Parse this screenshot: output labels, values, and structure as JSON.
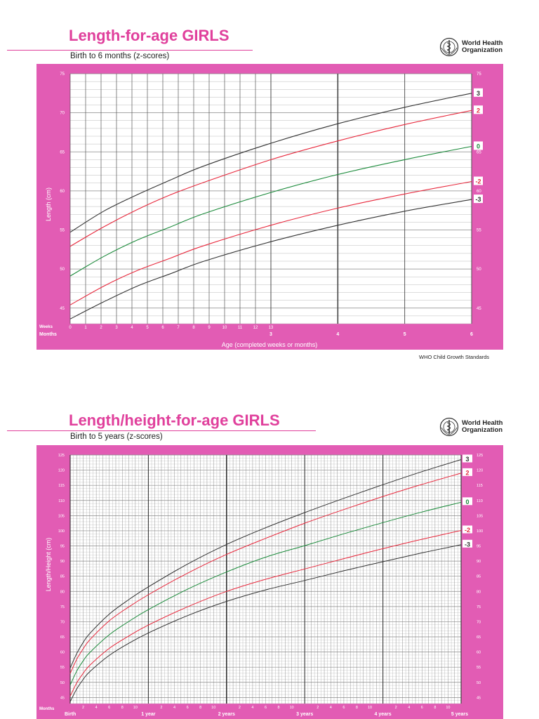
{
  "chart1": {
    "title": "Length-for-age GIRLS",
    "subtitle": "Birth to 6 months (z-scores)",
    "org_line1": "World Health",
    "org_line2": "Organization",
    "ylabel": "Length (cm)",
    "xlabel": "Age (completed weeks or months)",
    "weeks_label": "Weeks",
    "months_label": "Months",
    "week_ticks": [
      "0",
      "1",
      "2",
      "3",
      "4",
      "5",
      "6",
      "7",
      "8",
      "9",
      "10",
      "11",
      "12",
      "13"
    ],
    "month_ticks": [
      "3",
      "4",
      "5",
      "6"
    ],
    "footer": "WHO Child Growth Standards"
  },
  "chart2": {
    "title": "Length/height-for-age GIRLS",
    "subtitle": "Birth to 5 years (z-scores)",
    "org_line1": "World Health",
    "org_line2": "Organization",
    "ylabel": "Length/Height (cm)",
    "months_label": "Months",
    "month_ticks": [
      "2",
      "4",
      "6",
      "8",
      "10"
    ],
    "year_labels": [
      "Birth",
      "1 year",
      "2 years",
      "3 years",
      "4 years",
      "5 years"
    ]
  },
  "chart_data": [
    {
      "type": "line",
      "title": "Length-for-age GIRLS",
      "subtitle": "Birth to 6 months (z-scores)",
      "xlabel": "Age (completed weeks or months)",
      "ylabel": "Length (cm)",
      "x_unit": "months",
      "xlim": [
        0,
        6
      ],
      "ylim": [
        43,
        75
      ],
      "yticks": [
        45,
        50,
        55,
        60,
        65,
        70,
        75
      ],
      "grid": true,
      "x": [
        0,
        0.5,
        1,
        1.5,
        2,
        3,
        4,
        5,
        6
      ],
      "series": [
        {
          "name": "3",
          "color": "#333333",
          "values": [
            54.7,
            57.4,
            59.5,
            61.4,
            63.2,
            66.1,
            68.6,
            70.7,
            72.5
          ]
        },
        {
          "name": "2",
          "color": "#e8283c",
          "values": [
            52.9,
            55.4,
            57.6,
            59.5,
            61.1,
            64.0,
            66.4,
            68.5,
            70.3
          ]
        },
        {
          "name": "0",
          "color": "#1a8a3a",
          "values": [
            49.1,
            51.6,
            53.7,
            55.4,
            57.1,
            59.8,
            62.1,
            64.0,
            65.7
          ]
        },
        {
          "name": "-2",
          "color": "#e8283c",
          "values": [
            45.4,
            47.8,
            49.8,
            51.4,
            53.0,
            55.6,
            57.8,
            59.6,
            61.2
          ]
        },
        {
          "name": "-3",
          "color": "#333333",
          "values": [
            43.6,
            45.8,
            47.8,
            49.4,
            51.0,
            53.5,
            55.6,
            57.4,
            58.9
          ]
        }
      ]
    },
    {
      "type": "line",
      "title": "Length/height-for-age GIRLS",
      "subtitle": "Birth to 5 years (z-scores)",
      "ylabel": "Length/Height (cm)",
      "x_unit": "months",
      "xlim": [
        0,
        60
      ],
      "ylim": [
        43,
        125
      ],
      "yticks": [
        45,
        50,
        55,
        60,
        65,
        70,
        75,
        80,
        85,
        90,
        95,
        100,
        105,
        110,
        115,
        120,
        125
      ],
      "grid": true,
      "x": [
        0,
        1,
        2,
        3,
        6,
        9,
        12,
        18,
        24,
        30,
        36,
        42,
        48,
        54,
        60
      ],
      "series": [
        {
          "name": "3",
          "color": "#333333",
          "values": [
            54.7,
            59.5,
            63.2,
            66.1,
            72.5,
            77.3,
            81.5,
            89.0,
            95.5,
            101.0,
            106.0,
            110.7,
            115.2,
            119.5,
            123.5
          ]
        },
        {
          "name": "2",
          "color": "#e8283c",
          "values": [
            52.9,
            57.6,
            61.1,
            64.0,
            70.3,
            74.9,
            78.9,
            86.0,
            92.2,
            97.5,
            102.5,
            107.0,
            111.3,
            115.3,
            119.0
          ]
        },
        {
          "name": "0",
          "color": "#1a8a3a",
          "values": [
            49.1,
            53.7,
            57.1,
            59.8,
            65.7,
            70.1,
            74.0,
            80.7,
            86.4,
            91.3,
            95.1,
            99.0,
            102.7,
            106.2,
            109.4
          ]
        },
        {
          "name": "-2",
          "color": "#e8283c",
          "values": [
            45.4,
            49.8,
            53.0,
            55.6,
            61.2,
            65.3,
            68.9,
            74.9,
            80.0,
            84.0,
            87.4,
            90.8,
            94.1,
            97.2,
            100.1
          ]
        },
        {
          "name": "-3",
          "color": "#333333",
          "values": [
            43.6,
            47.8,
            51.0,
            53.5,
            58.9,
            62.9,
            66.3,
            72.0,
            76.7,
            80.5,
            83.6,
            86.8,
            89.8,
            92.7,
            95.4
          ]
        }
      ]
    }
  ]
}
